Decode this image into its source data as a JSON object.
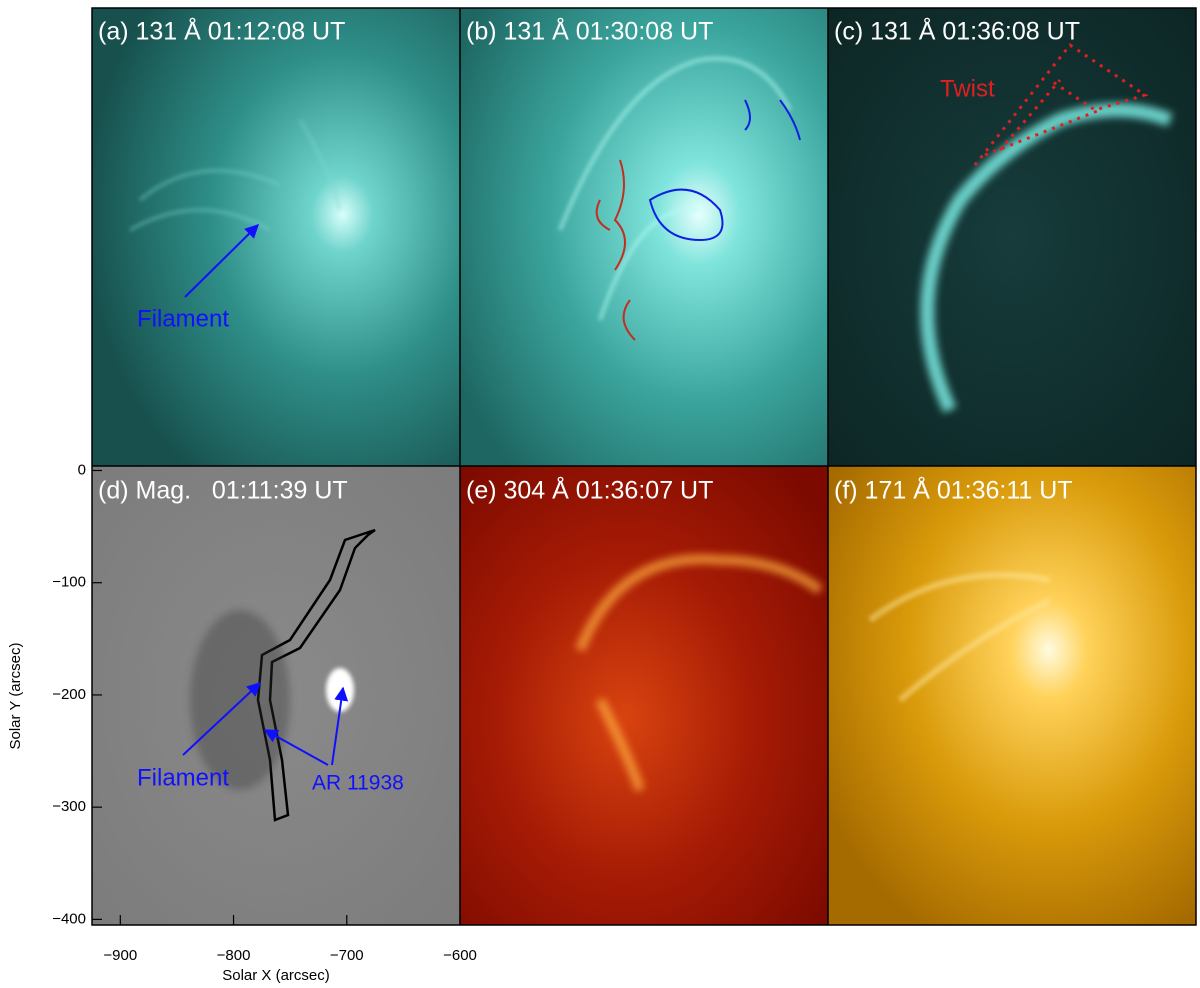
{
  "panels": [
    {
      "label": "(a) 131 Å 01:12:08 UT"
    },
    {
      "label": "(b) 131 Å 01:30:08 UT"
    },
    {
      "label": "(c) 131 Å 01:36:08 UT"
    },
    {
      "label": "(d) Mag.   01:11:39 UT"
    },
    {
      "label": "(e) 304 Å 01:36:07 UT"
    },
    {
      "label": "(f) 171 Å 01:36:11 UT"
    }
  ],
  "annotations": {
    "a_filament": "Filament",
    "c_twist": "Twist",
    "d_filament": "Filament",
    "d_region": "AR 11938"
  },
  "axes": {
    "xlabel": "Solar X (arcsec)",
    "ylabel": "Solar Y (arcsec)",
    "xlim": [
      -925,
      -600
    ],
    "ylim": [
      -405,
      4
    ],
    "xticks": [
      {
        "value": -900,
        "label": "−900"
      },
      {
        "value": -800,
        "label": "−800"
      },
      {
        "value": -700,
        "label": "−700"
      },
      {
        "value": -600,
        "label": "−600"
      }
    ],
    "yticks": [
      0,
      {
        "value": -100,
        "label": "−100"
      },
      {
        "value": -200,
        "label": "−200"
      },
      {
        "value": -300,
        "label": "−300"
      },
      {
        "value": -400,
        "label": "−400"
      }
    ]
  }
}
